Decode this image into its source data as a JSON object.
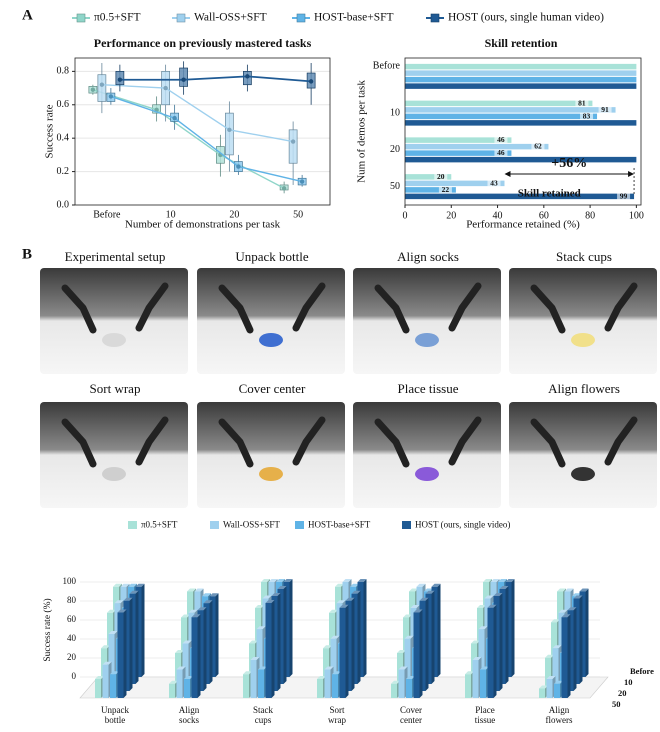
{
  "panel_labels": [
    "A",
    "B"
  ],
  "photos": [
    "Experimental setup",
    "Unpack bottle",
    "Align socks",
    "Stack cups",
    "Sort wrap",
    "Cover center",
    "Place tissue",
    "Align flowers"
  ],
  "chart_data": [
    {
      "type": "box_line",
      "title": "Performance on previously mastered tasks",
      "x_label": "Number of demonstrations per task",
      "y_label": "Success rate",
      "categories": [
        "Before",
        "10",
        "20",
        "50"
      ],
      "ylim": [
        0,
        0.88
      ],
      "yticks": [
        {
          "value": 0,
          "label": "0.0"
        },
        0.2,
        0.4,
        0.6,
        0.8
      ],
      "series": [
        {
          "name": "π0.5+SFT",
          "color": "#8fd5c9",
          "values": [
            0.69,
            0.57,
            0.3,
            0.1
          ],
          "boxes": [
            [
              0.66,
              0.67,
              0.71,
              0.72
            ],
            [
              0.5,
              0.55,
              0.6,
              0.65
            ],
            [
              0.17,
              0.25,
              0.35,
              0.42
            ],
            [
              0.07,
              0.09,
              0.12,
              0.14
            ]
          ]
        },
        {
          "name": "Wall-OSS+SFT",
          "color": "#9fd0ee",
          "values": [
            0.72,
            0.7,
            0.45,
            0.38
          ],
          "boxes": [
            [
              0.55,
              0.62,
              0.78,
              0.85
            ],
            [
              0.5,
              0.6,
              0.8,
              0.84
            ],
            [
              0.2,
              0.3,
              0.55,
              0.62
            ],
            [
              0.12,
              0.25,
              0.45,
              0.5
            ]
          ]
        },
        {
          "name": "HOST-base+SFT",
          "color": "#5fb3e6",
          "values": [
            0.65,
            0.52,
            0.23,
            0.14
          ],
          "boxes": [
            [
              0.6,
              0.62,
              0.67,
              0.7
            ],
            [
              0.45,
              0.5,
              0.55,
              0.6
            ],
            [
              0.18,
              0.2,
              0.26,
              0.3
            ],
            [
              0.11,
              0.12,
              0.16,
              0.18
            ]
          ]
        },
        {
          "name": "HOST (ours, single human video)",
          "color": "#1f5a94",
          "values": [
            0.75,
            0.75,
            0.77,
            0.74
          ],
          "boxes": [
            [
              0.68,
              0.72,
              0.8,
              0.84
            ],
            [
              0.66,
              0.71,
              0.82,
              0.86
            ],
            [
              0.68,
              0.72,
              0.8,
              0.84
            ],
            [
              0.6,
              0.7,
              0.79,
              0.85
            ]
          ]
        }
      ]
    },
    {
      "type": "hbar",
      "title": "Skill retention",
      "x_label": "Performance retained (%)",
      "y_label": "Num of demos per task",
      "categories": [
        "Before",
        "10",
        "20",
        "50"
      ],
      "xlim": [
        0,
        102
      ],
      "xticks": [
        0,
        20,
        40,
        60,
        80,
        100
      ],
      "annotations": {
        "gain": "+56%",
        "retained": "Skill retained"
      },
      "series": [
        {
          "color": "#a8e2d8",
          "values": [
            100,
            81,
            46,
            20
          ],
          "value_labels": [
            null,
            "81",
            "46",
            "20"
          ]
        },
        {
          "color": "#9fd0ee",
          "values": [
            100,
            91,
            62,
            43
          ],
          "value_labels": [
            null,
            "91",
            "62",
            "43"
          ]
        },
        {
          "color": "#5fb3e6",
          "values": [
            100,
            83,
            46,
            22
          ],
          "value_labels": [
            null,
            "83",
            "46",
            "22"
          ]
        },
        {
          "color": "#1f5a94",
          "values": [
            100,
            100,
            100,
            99
          ],
          "value_labels": [
            null,
            null,
            null,
            "99"
          ]
        }
      ]
    },
    {
      "type": "bar3d",
      "y_label": "Success rate (%)",
      "ylim": [
        0,
        100
      ],
      "yticks": [
        0,
        20,
        40,
        60,
        80,
        100
      ],
      "categories": [
        [
          "Unpack",
          "bottle"
        ],
        [
          "Align",
          "socks"
        ],
        [
          "Stack",
          "cups"
        ],
        [
          "Sort",
          "wrap"
        ],
        [
          "Cover",
          "center"
        ],
        [
          "Place",
          "tissue"
        ],
        [
          "Align",
          "flowers"
        ]
      ],
      "depth": [
        "Before",
        "10",
        "20",
        "50"
      ],
      "series": [
        {
          "name": "π0.5+SFT",
          "color": "#a8e2d8",
          "values": [
            [
              95,
              75,
              45,
              20
            ],
            [
              90,
              70,
              40,
              15
            ],
            [
              100,
              80,
              50,
              25
            ],
            [
              95,
              75,
              45,
              20
            ],
            [
              90,
              70,
              40,
              15
            ],
            [
              100,
              80,
              50,
              25
            ],
            [
              90,
              65,
              35,
              10
            ]
          ]
        },
        {
          "name": "Wall-OSS+SFT",
          "color": "#9fd0ee",
          "values": [
            [
              95,
              85,
              60,
              35
            ],
            [
              90,
              75,
              50,
              30
            ],
            [
              100,
              90,
              65,
              40
            ],
            [
              100,
              85,
              55,
              30
            ],
            [
              95,
              80,
              55,
              30
            ],
            [
              100,
              90,
              65,
              40
            ],
            [
              90,
              75,
              45,
              20
            ]
          ]
        },
        {
          "name": "HOST-base+SFT",
          "color": "#5fb3e6",
          "values": [
            [
              95,
              80,
              55,
              25
            ],
            [
              85,
              70,
              45,
              20
            ],
            [
              100,
              85,
              55,
              30
            ],
            [
              95,
              80,
              50,
              25
            ],
            [
              90,
              75,
              45,
              20
            ],
            [
              100,
              85,
              55,
              30
            ],
            [
              85,
              70,
              40,
              15
            ]
          ]
        },
        {
          "name": "HOST (ours, single video)",
          "color": "#1f5a94",
          "values": [
            [
              95,
              95,
              95,
              90
            ],
            [
              85,
              85,
              85,
              85
            ],
            [
              100,
              100,
              100,
              100
            ],
            [
              100,
              95,
              95,
              95
            ],
            [
              95,
              95,
              95,
              90
            ],
            [
              100,
              100,
              100,
              95
            ],
            [
              90,
              90,
              85,
              85
            ]
          ]
        }
      ]
    }
  ]
}
